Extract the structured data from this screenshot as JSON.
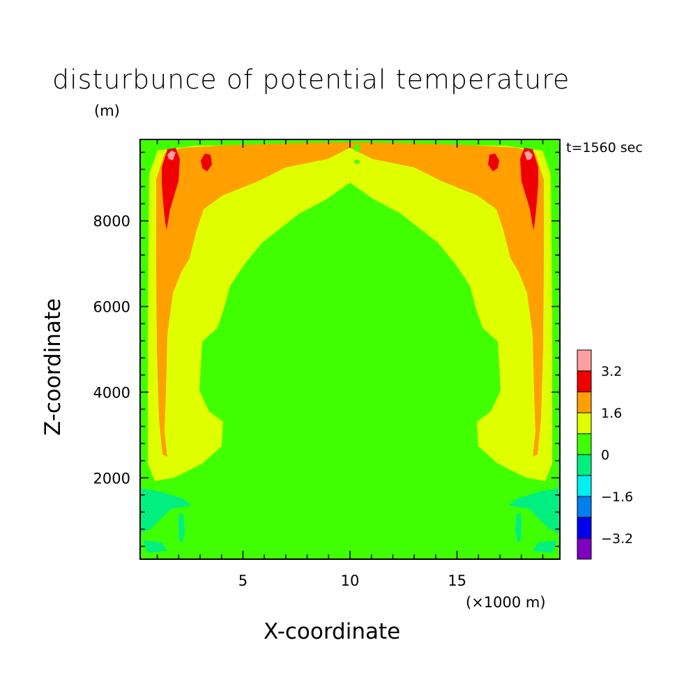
{
  "chart_data": {
    "type": "heatmap",
    "title": "disturbunce of potential temperature",
    "subtitle": "t=1560 sec",
    "xlabel": "X-coordinate",
    "ylabel": "Z-coordinate",
    "x_unit_label": "(×1000 m)",
    "y_unit_label": "(m)",
    "xlim": [
      0.2,
      19.8
    ],
    "ylim": [
      100,
      9900
    ],
    "x_ticks": [
      5,
      10,
      15
    ],
    "x_tick_labels": [
      "5",
      "10",
      "15"
    ],
    "y_ticks": [
      2000,
      4000,
      6000,
      8000
    ],
    "y_tick_labels": [
      "2000",
      "4000",
      "6000",
      "8000"
    ],
    "colorbar": {
      "levels": [
        -4.0,
        -3.2,
        -2.4,
        -1.6,
        -0.8,
        0,
        0.8,
        1.6,
        2.4,
        3.2,
        4.0
      ],
      "colors": [
        "#7f00bf",
        "#0000ef",
        "#0080ef",
        "#00efef",
        "#00ef80",
        "#40ff00",
        "#dfff00",
        "#ff9f00",
        "#ef0000",
        "#ff9f9f"
      ],
      "tick_labels": [
        "-3.2",
        "-1.6",
        "0",
        "1.6",
        "3.2"
      ]
    },
    "regions": [
      {
        "level": "0 to 0.8",
        "description": "background and central dome"
      },
      {
        "level": "0.8 to 1.6",
        "description": "arch surrounding the dome down to about z=1800"
      },
      {
        "level": "1.6 to 2.4",
        "description": "near side walls and top boundary"
      },
      {
        "level": "2.4 to 3.2",
        "description": "narrow plumes near the top corners"
      },
      {
        "level": "3.2 to 4.0",
        "description": "small cores at plume tips"
      },
      {
        "level": "-0.8 to 0",
        "description": "small patches near the bottom corners"
      }
    ]
  }
}
